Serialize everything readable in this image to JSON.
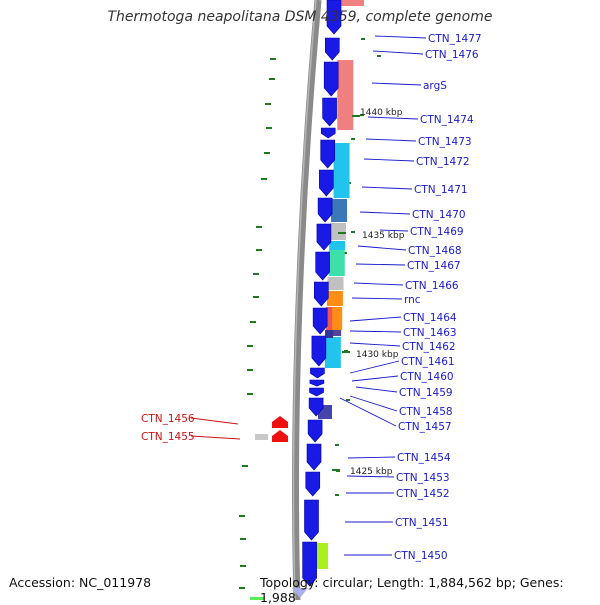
{
  "title": "Thermotoga neapolitana DSM 4359, complete genome",
  "footer": {
    "accession": "Accession: NC_011978",
    "summary": "Topology: circular; Length: 1,884,562 bp; Genes: 1,988"
  },
  "ticks": [
    "1440 kbp",
    "1435 kbp",
    "1430 kbp",
    "1425 kbp"
  ],
  "genes_right": [
    "CTN_1477",
    "CTN_1476",
    "argS",
    "CTN_1474",
    "CTN_1473",
    "CTN_1472",
    "CTN_1471",
    "CTN_1470",
    "CTN_1469",
    "CTN_1468",
    "CTN_1467",
    "CTN_1466",
    "rnc",
    "CTN_1464",
    "CTN_1463",
    "CTN_1462",
    "CTN_1461",
    "CTN_1460",
    "CTN_1459",
    "CTN_1458",
    "CTN_1457",
    "CTN_1454",
    "CTN_1453",
    "CTN_1452",
    "CTN_1451",
    "CTN_1450"
  ],
  "genes_left": [
    "CTN_1456",
    "CTN_1455"
  ],
  "colors": {
    "forward_gene": "#1a1ae6",
    "reverse_gene": "#ee1111",
    "right_label": "#1a1acc",
    "left_label": "#cc1111",
    "backbone": "#808080",
    "gc_tick": "#1f7a1f"
  }
}
